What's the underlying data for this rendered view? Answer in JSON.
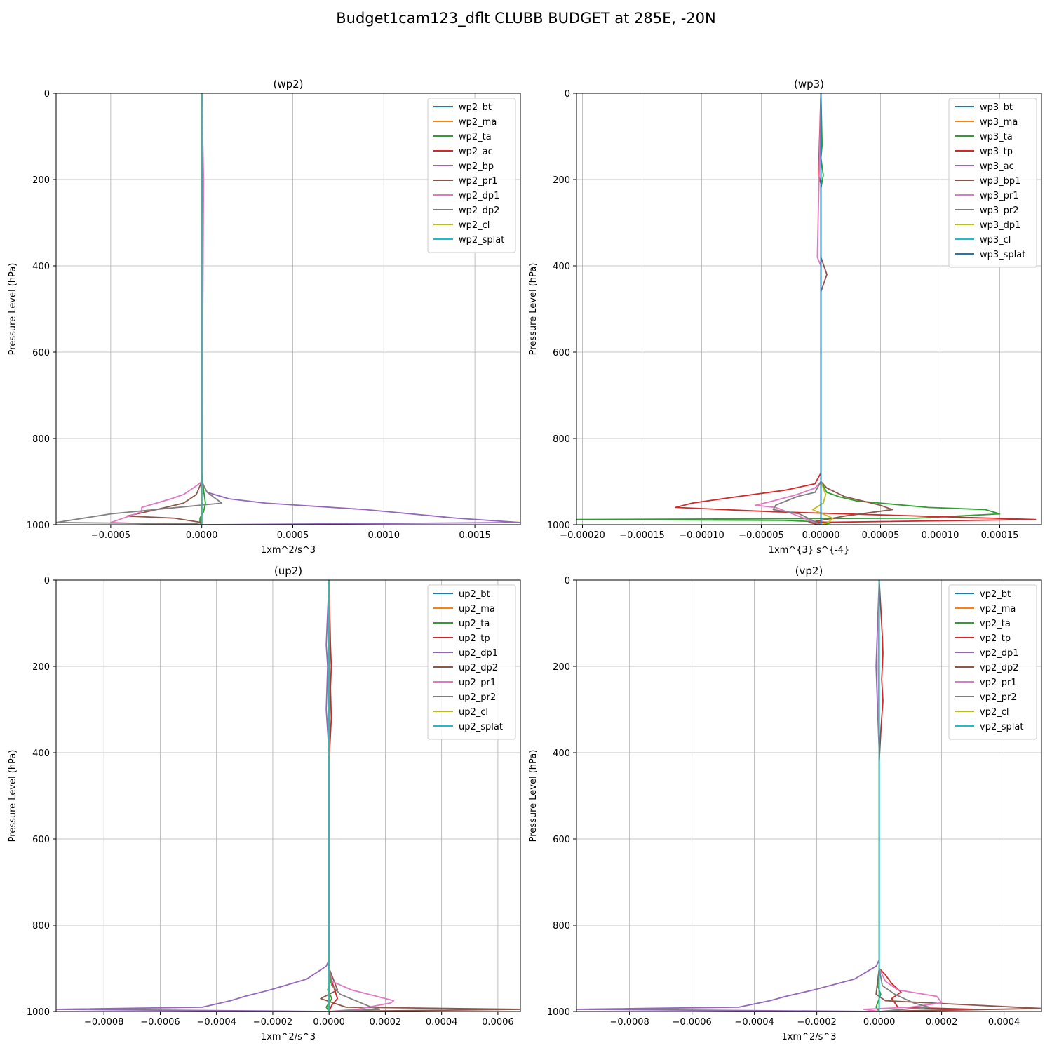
{
  "figure": {
    "suptitle": "Budget1cam123_dflt CLUBB BUDGET at 285E, -20N"
  },
  "colors": [
    "#1f77b4",
    "#ff7f0e",
    "#2ca02c",
    "#d62728",
    "#9467bd",
    "#8c564b",
    "#e377c2",
    "#7f7f7f",
    "#bcbd22",
    "#17becf"
  ],
  "chart_data": [
    {
      "type": "line",
      "title": "(wp2)",
      "xlabel": "1xm^2/s^3",
      "ylabel": "Pressure Level (hPa)",
      "xlim": [
        -0.0008,
        0.00175
      ],
      "ylim": [
        1000,
        0
      ],
      "xticks": [
        -0.0005,
        0.0,
        0.0005,
        0.001,
        0.0015
      ],
      "xtick_labels": [
        "−0.0005",
        "0.0000",
        "0.0005",
        "0.0010",
        "0.0015"
      ],
      "yticks": [
        0,
        200,
        400,
        600,
        800,
        1000
      ],
      "ytick_labels": [
        "0",
        "200",
        "400",
        "600",
        "800",
        "1000"
      ],
      "grid": true,
      "legend": "top-right",
      "series": [
        {
          "name": "wp2_bt",
          "x": [
            0,
            0,
            0,
            0
          ],
          "y": [
            0,
            500,
            900,
            1000
          ]
        },
        {
          "name": "wp2_ma",
          "x": [
            0,
            0,
            0,
            0
          ],
          "y": [
            0,
            500,
            900,
            1000
          ]
        },
        {
          "name": "wp2_ta",
          "x": [
            0,
            0,
            1e-05,
            2e-05,
            1e-05,
            -1e-05,
            -1e-05,
            0
          ],
          "y": [
            0,
            880,
            920,
            950,
            970,
            985,
            995,
            1000
          ]
        },
        {
          "name": "wp2_ac",
          "x": [
            0,
            0,
            0
          ],
          "y": [
            0,
            900,
            1000
          ]
        },
        {
          "name": "wp2_bp",
          "x": [
            0,
            5e-06,
            0,
            0,
            1e-05,
            3e-05,
            0.00015,
            0.00035,
            0.0009,
            0.0014,
            0.00175,
            0.0
          ],
          "y": [
            0,
            150,
            300,
            900,
            910,
            925,
            940,
            950,
            965,
            985,
            995,
            1000
          ]
        },
        {
          "name": "wp2_pr1",
          "x": [
            0,
            0,
            -3e-05,
            -0.0001,
            -0.00025,
            -0.00041,
            -0.00015,
            0.0,
            0.0
          ],
          "y": [
            0,
            900,
            930,
            950,
            965,
            980,
            985,
            995,
            1000
          ]
        },
        {
          "name": "wp2_dp1",
          "x": [
            0,
            1e-05,
            0,
            -3e-05,
            -0.0001,
            -0.00017,
            -0.00025,
            -0.00033,
            -0.00033,
            -0.0005,
            -0.0003,
            0
          ],
          "y": [
            0,
            200,
            900,
            910,
            930,
            940,
            950,
            960,
            970,
            995,
            998,
            1000
          ]
        },
        {
          "name": "wp2_dp2",
          "x": [
            0,
            0,
            3e-05,
            0.00011,
            -0.0005,
            -0.0008,
            -3e-05,
            0
          ],
          "y": [
            0,
            900,
            925,
            950,
            975,
            995,
            998,
            1000
          ]
        },
        {
          "name": "wp2_cl",
          "x": [
            0,
            0,
            0
          ],
          "y": [
            0,
            900,
            1000
          ]
        },
        {
          "name": "wp2_splat",
          "x": [
            0,
            0,
            0
          ],
          "y": [
            0,
            900,
            1000
          ]
        }
      ]
    },
    {
      "type": "line",
      "title": "(wp3)",
      "xlabel": "1xm^{3} s^{-4}",
      "ylabel": "Pressure Level (hPa)",
      "xlim": [
        -0.000205,
        0.000185
      ],
      "ylim": [
        1000,
        0
      ],
      "xticks": [
        -0.0002,
        -0.00015,
        -0.0001,
        -5e-05,
        0.0,
        5e-05,
        0.0001,
        0.00015
      ],
      "xtick_labels": [
        "−0.00020",
        "−0.00015",
        "−0.00010",
        "−0.00005",
        "0.00000",
        "0.00005",
        "0.00010",
        "0.00015"
      ],
      "yticks": [
        0,
        200,
        400,
        600,
        800,
        1000
      ],
      "ytick_labels": [
        "0",
        "200",
        "400",
        "600",
        "800",
        "1000"
      ],
      "grid": true,
      "legend": "top-right",
      "series": [
        {
          "name": "wp3_bt",
          "x": [
            0,
            0,
            0
          ],
          "y": [
            0,
            500,
            1000
          ]
        },
        {
          "name": "wp3_ma",
          "x": [
            0,
            0,
            0
          ],
          "y": [
            0,
            500,
            1000
          ]
        },
        {
          "name": "wp3_ta",
          "x": [
            0,
            1e-06,
            0,
            2e-06,
            0,
            0,
            5e-06,
            1.5e-05,
            3e-05,
            9e-05,
            0.000138,
            0.00015,
            8e-05,
            -0.000205,
            -3e-05,
            1e-05,
            0
          ],
          "y": [
            0,
            120,
            150,
            190,
            220,
            900,
            925,
            935,
            945,
            960,
            965,
            975,
            985,
            988,
            990,
            995,
            1000
          ]
        },
        {
          "name": "wp3_tp",
          "x": [
            0,
            -2e-06,
            0,
            0,
            -5e-06,
            -3e-05,
            -7e-05,
            -0.000108,
            -0.000122,
            -4e-05,
            0.00018,
            -1e-05,
            0
          ],
          "y": [
            0,
            190,
            210,
            880,
            905,
            920,
            935,
            950,
            960,
            970,
            988,
            995,
            1000
          ]
        },
        {
          "name": "wp3_ac",
          "x": [
            0,
            0,
            0
          ],
          "y": [
            0,
            900,
            1000
          ]
        },
        {
          "name": "wp3_bp1",
          "x": [
            0,
            0,
            5e-06,
            0,
            0,
            5e-06,
            2e-05,
            5e-05,
            6e-05,
            2e-05,
            -1e-05,
            0
          ],
          "y": [
            0,
            380,
            420,
            460,
            900,
            915,
            935,
            955,
            965,
            980,
            995,
            1000
          ]
        },
        {
          "name": "wp3_pr1",
          "x": [
            0,
            -3e-06,
            0,
            0,
            -5e-06,
            -2e-05,
            -4e-05,
            -5.5e-05,
            -3.8e-05,
            0
          ],
          "y": [
            0,
            380,
            400,
            900,
            915,
            930,
            945,
            955,
            960,
            1000
          ]
        },
        {
          "name": "wp3_pr2",
          "x": [
            0,
            0,
            -5e-06,
            -2e-05,
            -3.8e-05,
            -4e-05,
            -1.8e-05,
            0
          ],
          "y": [
            0,
            900,
            925,
            935,
            955,
            965,
            975,
            1000
          ]
        },
        {
          "name": "wp3_dp1",
          "x": [
            0,
            0,
            4e-06,
            2e-06,
            -7e-06,
            1e-05,
            6e-06,
            0
          ],
          "y": [
            0,
            900,
            930,
            950,
            965,
            985,
            995,
            1000
          ]
        },
        {
          "name": "wp3_cl",
          "x": [
            0,
            0,
            0
          ],
          "y": [
            0,
            900,
            1000
          ]
        },
        {
          "name": "wp3_splat",
          "x": [
            0,
            0,
            0
          ],
          "y": [
            0,
            500,
            1000
          ]
        }
      ]
    },
    {
      "type": "line",
      "title": "(up2)",
      "xlabel": "1xm^2/s^3",
      "ylabel": "Pressure Level (hPa)",
      "xlim": [
        -0.00097,
        0.00068
      ],
      "ylim": [
        1000,
        0
      ],
      "xticks": [
        -0.0008,
        -0.0006,
        -0.0004,
        -0.0002,
        0.0,
        0.0002,
        0.0004,
        0.0006
      ],
      "xtick_labels": [
        "−0.0008",
        "−0.0006",
        "−0.0004",
        "−0.0002",
        "0.0000",
        "0.0002",
        "0.0004",
        "0.0006"
      ],
      "yticks": [
        0,
        200,
        400,
        600,
        800,
        1000
      ],
      "ytick_labels": [
        "0",
        "200",
        "400",
        "600",
        "800",
        "1000"
      ],
      "grid": true,
      "legend": "top-right",
      "series": [
        {
          "name": "up2_bt",
          "x": [
            0,
            0,
            0
          ],
          "y": [
            0,
            500,
            1000
          ]
        },
        {
          "name": "up2_ma",
          "x": [
            0,
            0,
            0
          ],
          "y": [
            0,
            500,
            1000
          ]
        },
        {
          "name": "up2_ta",
          "x": [
            0,
            0,
            5e-06,
            -5e-06,
            1e-05,
            -1e-05,
            0
          ],
          "y": [
            0,
            900,
            930,
            950,
            970,
            990,
            1000
          ]
        },
        {
          "name": "up2_tp",
          "x": [
            0,
            5e-06,
            8e-06,
            5e-06,
            8e-06,
            0,
            0,
            1e-05,
            2e-05,
            3e-05,
            1e-05,
            0
          ],
          "y": [
            0,
            150,
            200,
            250,
            320,
            420,
            900,
            930,
            950,
            970,
            985,
            1000
          ]
        },
        {
          "name": "up2_dp1",
          "x": [
            0,
            -1e-05,
            -5e-06,
            -1e-05,
            0,
            0,
            -1e-05,
            -8e-05,
            -0.00021,
            -0.0003,
            -0.00035,
            -0.00045,
            -0.00097,
            0
          ],
          "y": [
            0,
            150,
            200,
            300,
            400,
            880,
            895,
            925,
            950,
            965,
            975,
            990,
            995,
            1000
          ]
        },
        {
          "name": "up2_dp2",
          "x": [
            0,
            0,
            3e-05,
            -3e-05,
            6e-05,
            0.00068,
            0
          ],
          "y": [
            0,
            900,
            950,
            970,
            990,
            995,
            1000
          ]
        },
        {
          "name": "up2_pr1",
          "x": [
            0,
            0,
            1e-05,
            8e-05,
            0.00023,
            0.00022,
            0.0001,
            0
          ],
          "y": [
            0,
            900,
            930,
            950,
            975,
            980,
            995,
            1000
          ]
        },
        {
          "name": "up2_pr2",
          "x": [
            0,
            0,
            1e-05,
            4e-05,
            0.00015,
            0.00018,
            0
          ],
          "y": [
            0,
            900,
            940,
            960,
            990,
            995,
            1000
          ]
        },
        {
          "name": "up2_cl",
          "x": [
            0,
            0,
            0
          ],
          "y": [
            0,
            900,
            1000
          ]
        },
        {
          "name": "up2_splat",
          "x": [
            0,
            0,
            0
          ],
          "y": [
            0,
            900,
            1000
          ]
        }
      ]
    },
    {
      "type": "line",
      "title": "(vp2)",
      "xlabel": "1xm^2/s^3",
      "ylabel": "Pressure Level (hPa)",
      "xlim": [
        -0.00097,
        0.00052
      ],
      "ylim": [
        1000,
        0
      ],
      "xticks": [
        -0.0008,
        -0.0006,
        -0.0004,
        -0.0002,
        0.0,
        0.0002,
        0.0004
      ],
      "xtick_labels": [
        "−0.0008",
        "−0.0006",
        "−0.0004",
        "−0.0002",
        "0.0000",
        "0.0002",
        "0.0004"
      ],
      "yticks": [
        0,
        200,
        400,
        600,
        800,
        1000
      ],
      "ytick_labels": [
        "0",
        "200",
        "400",
        "600",
        "800",
        "1000"
      ],
      "grid": true,
      "legend": "top-right",
      "series": [
        {
          "name": "vp2_bt",
          "x": [
            0,
            0,
            0
          ],
          "y": [
            0,
            500,
            1000
          ]
        },
        {
          "name": "vp2_ma",
          "x": [
            0,
            0,
            0
          ],
          "y": [
            0,
            500,
            1000
          ]
        },
        {
          "name": "vp2_ta",
          "x": [
            0,
            0,
            -5e-06,
            5e-06,
            -1e-05,
            0
          ],
          "y": [
            0,
            900,
            940,
            960,
            990,
            1000
          ]
        },
        {
          "name": "vp2_tp",
          "x": [
            0,
            1e-05,
            1.2e-05,
            8e-06,
            1.2e-05,
            6e-06,
            0,
            0,
            2e-05,
            4e-05,
            7e-05,
            4e-05,
            6e-05,
            0.0003,
            0
          ],
          "y": [
            0,
            130,
            170,
            230,
            280,
            340,
            420,
            900,
            915,
            935,
            955,
            970,
            990,
            995,
            1000
          ]
        },
        {
          "name": "vp2_dp1",
          "x": [
            0,
            -1e-05,
            -5e-06,
            0,
            0,
            -1e-05,
            -8e-05,
            -0.00021,
            -0.0003,
            -0.00035,
            -0.00045,
            -0.00097,
            0
          ],
          "y": [
            0,
            200,
            300,
            400,
            880,
            895,
            925,
            950,
            965,
            975,
            990,
            995,
            1000
          ]
        },
        {
          "name": "vp2_dp2",
          "x": [
            0,
            0,
            -1e-05,
            2e-05,
            0.00052,
            0
          ],
          "y": [
            0,
            900,
            960,
            975,
            993,
            1000
          ]
        },
        {
          "name": "vp2_pr1",
          "x": [
            0,
            -3e-06,
            0,
            0,
            2e-05,
            6e-05,
            0.000185,
            0.0002,
            0.0001,
            -5e-05,
            0
          ],
          "y": [
            0,
            200,
            400,
            900,
            930,
            950,
            965,
            980,
            990,
            995,
            1000
          ]
        },
        {
          "name": "vp2_pr2",
          "x": [
            0,
            0,
            1e-05,
            5e-05,
            0.00011,
            0.00016,
            0
          ],
          "y": [
            0,
            900,
            940,
            960,
            980,
            990,
            1000
          ]
        },
        {
          "name": "vp2_cl",
          "x": [
            0,
            0,
            0
          ],
          "y": [
            0,
            900,
            1000
          ]
        },
        {
          "name": "vp2_splat",
          "x": [
            0,
            0,
            0
          ],
          "y": [
            0,
            900,
            1000
          ]
        }
      ]
    }
  ]
}
